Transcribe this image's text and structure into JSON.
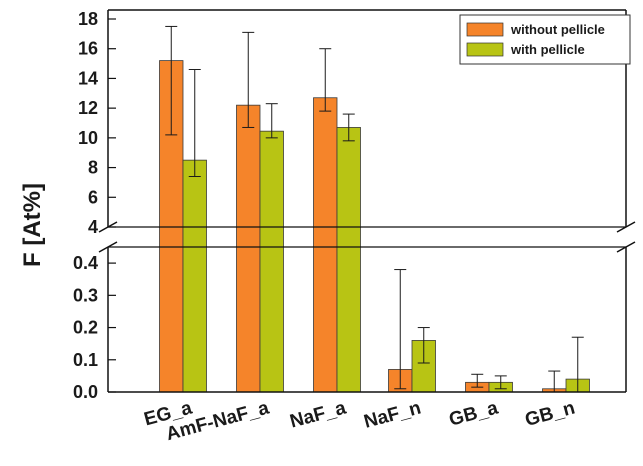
{
  "chart_data": {
    "type": "bar",
    "ylabel": "F [At%]",
    "categories": [
      "EG_a",
      "AmF-NaF_a",
      "NaF_a",
      "NaF_n",
      "GB_a",
      "GB_n"
    ],
    "series": [
      {
        "name": "without pellicle",
        "color": "#f5842a",
        "values": [
          15.2,
          12.2,
          12.7,
          0.07,
          0.03,
          0.01
        ],
        "err_low": [
          10.2,
          10.7,
          11.8,
          0.01,
          0.015,
          0.0
        ],
        "err_high": [
          17.5,
          17.1,
          16.0,
          0.38,
          0.055,
          0.065
        ]
      },
      {
        "name": "with pellicle",
        "color": "#b8c414",
        "values": [
          8.5,
          10.45,
          10.7,
          0.16,
          0.03,
          0.04
        ],
        "err_low": [
          7.4,
          10.0,
          9.8,
          0.09,
          0.01,
          0.0
        ],
        "err_high": [
          14.6,
          12.3,
          11.6,
          0.2,
          0.05,
          0.17
        ]
      }
    ],
    "y_axis_broken": true,
    "upper_segment": {
      "ylim": [
        4,
        18
      ],
      "ticks": [
        "4",
        "6",
        "8",
        "10",
        "12",
        "14",
        "16",
        "18"
      ]
    },
    "lower_segment": {
      "ylim": [
        0,
        0.45
      ],
      "ticks": [
        "0.0",
        "0.1",
        "0.2",
        "0.3",
        "0.4"
      ]
    },
    "legend_placement": "top-right",
    "grid": false
  }
}
